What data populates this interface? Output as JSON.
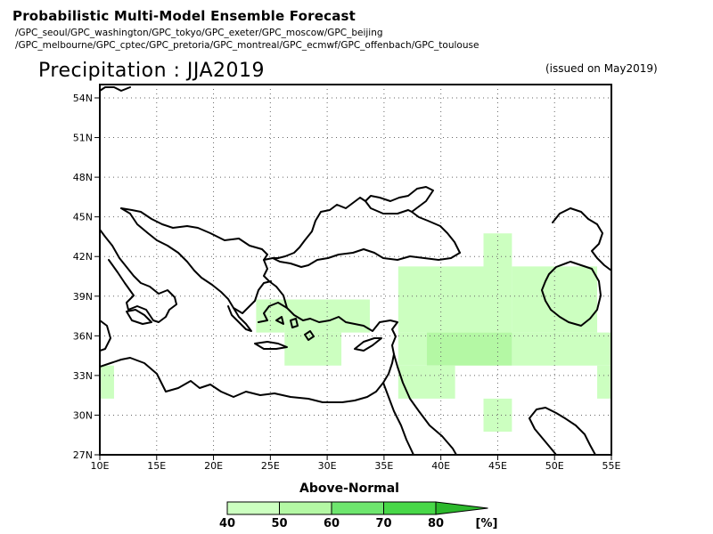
{
  "header": {
    "title": "Probabilistic Multi-Model Ensemble Forecast",
    "centers_line1": "/GPC_seoul/GPC_washington/GPC_tokyo/GPC_exeter/GPC_moscow/GPC_beijing",
    "centers_line2": "/GPC_melbourne/GPC_cptec/GPC_pretoria/GPC_montreal/GPC_ecmwf/GPC_offenbach/GPC_toulouse",
    "variable_title": "Precipitation : JJA2019",
    "issued": "(issued on May2019)"
  },
  "map": {
    "lat_labels": [
      "54N",
      "51N",
      "48N",
      "45N",
      "42N",
      "39N",
      "36N",
      "33N",
      "30N",
      "27N"
    ],
    "lon_labels": [
      "10E",
      "15E",
      "20E",
      "25E",
      "30E",
      "35E",
      "40E",
      "45E",
      "50E",
      "55E"
    ],
    "extent": {
      "lon": [
        10,
        55
      ],
      "lat": [
        27,
        55.5
      ]
    },
    "grid": "dotted",
    "colors": {
      "light_green": "#ccffc0",
      "mid_green": "#b4f8a4",
      "coast": "#000000"
    },
    "above_normal_cells": [
      {
        "lon": [
          10,
          11.25
        ],
        "lat": [
          31.25,
          33.75
        ],
        "category": "40-50"
      },
      {
        "lon": [
          23.75,
          26.25
        ],
        "lat": [
          36.25,
          38.75
        ],
        "category": "40-50"
      },
      {
        "lon": [
          26.25,
          33.75
        ],
        "lat": [
          36.25,
          38.75
        ],
        "category": "40-50"
      },
      {
        "lon": [
          26.25,
          31.25
        ],
        "lat": [
          33.75,
          36.25
        ],
        "category": "40-50"
      },
      {
        "lon": [
          36.25,
          43.75
        ],
        "lat": [
          36.25,
          41.25
        ],
        "category": "40-50"
      },
      {
        "lon": [
          43.75,
          46.25
        ],
        "lat": [
          36.25,
          43.75
        ],
        "category": "40-50"
      },
      {
        "lon": [
          46.25,
          53.75
        ],
        "lat": [
          36.25,
          41.25
        ],
        "category": "40-50"
      },
      {
        "lon": [
          36.25,
          38.75
        ],
        "lat": [
          33.75,
          36.25
        ],
        "category": "40-50"
      },
      {
        "lon": [
          46.25,
          55
        ],
        "lat": [
          33.75,
          36.25
        ],
        "category": "40-50"
      },
      {
        "lon": [
          38.75,
          46.25
        ],
        "lat": [
          33.75,
          36.25
        ],
        "category": "50-60"
      },
      {
        "lon": [
          36.25,
          41.25
        ],
        "lat": [
          31.25,
          33.75
        ],
        "category": "40-50"
      },
      {
        "lon": [
          53.75,
          55
        ],
        "lat": [
          31.25,
          33.75
        ],
        "category": "40-50"
      },
      {
        "lon": [
          43.75,
          46.25
        ],
        "lat": [
          28.75,
          31.25
        ],
        "category": "40-50"
      }
    ]
  },
  "legend": {
    "title": "Above-Normal",
    "labels": [
      "40",
      "50",
      "60",
      "70",
      "80"
    ],
    "unit": "[%]",
    "colors": [
      "#ccffc0",
      "#b4f8a4",
      "#6ee66e",
      "#48d848",
      "#2cb82c"
    ]
  }
}
